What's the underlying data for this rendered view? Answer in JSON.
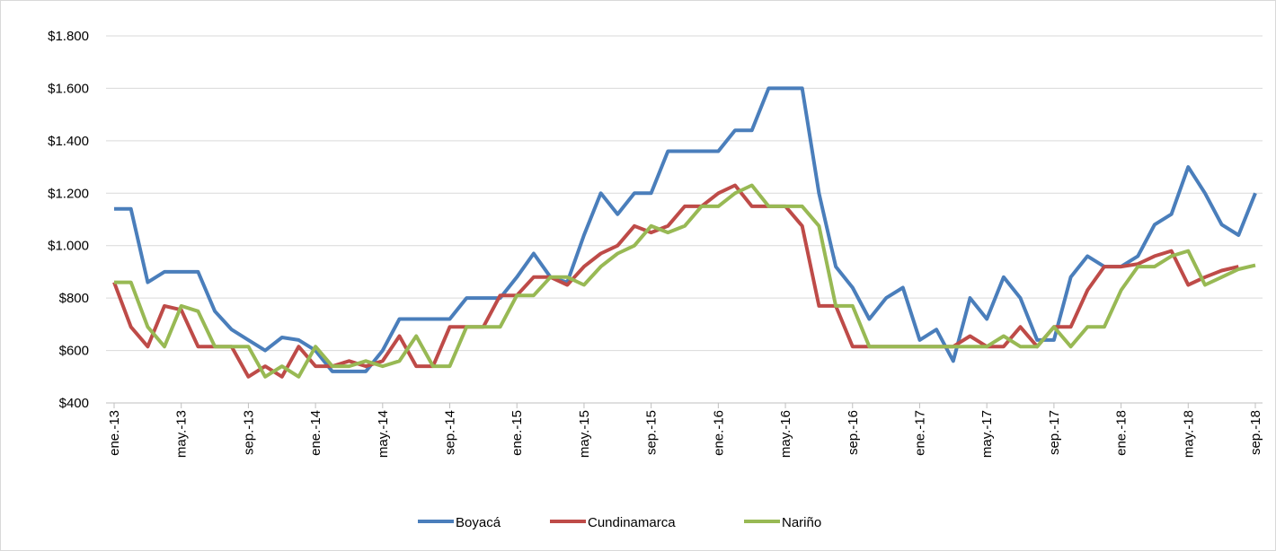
{
  "chart_data": {
    "type": "line",
    "categories": [
      "ene.-13",
      null,
      null,
      null,
      "may.-13",
      null,
      null,
      null,
      "sep.-13",
      null,
      null,
      null,
      "ene.-14",
      null,
      null,
      null,
      "may.-14",
      null,
      null,
      null,
      "sep.-14",
      null,
      null,
      null,
      "ene.-15",
      null,
      null,
      null,
      "may.-15",
      null,
      null,
      null,
      "sep.-15",
      null,
      null,
      null,
      "ene.-16",
      null,
      null,
      null,
      "may.-16",
      null,
      null,
      null,
      "sep.-16",
      null,
      null,
      null,
      "ene.-17",
      null,
      null,
      null,
      "may.-17",
      null,
      null,
      null,
      "sep.-17",
      null,
      null,
      null,
      "ene.-18",
      null,
      null,
      null,
      "may.-18",
      null,
      null,
      null,
      "sep.-18"
    ],
    "series": [
      {
        "name": "Boyacá",
        "color": "#4a7ebb",
        "values": [
          1140,
          1140,
          860,
          900,
          900,
          900,
          750,
          680,
          640,
          600,
          650,
          640,
          600,
          520,
          520,
          520,
          600,
          720,
          720,
          720,
          720,
          800,
          800,
          800,
          880,
          970,
          880,
          860,
          1040,
          1200,
          1120,
          1200,
          1200,
          1360,
          1360,
          1360,
          1360,
          1440,
          1440,
          1600,
          1600,
          1600,
          1200,
          920,
          840,
          720,
          800,
          840,
          640,
          680,
          560,
          800,
          720,
          880,
          800,
          640,
          640,
          880,
          960,
          920,
          920,
          960,
          1080,
          1120,
          1300,
          1200,
          1080,
          1040,
          1200
        ]
      },
      {
        "name": "Cundinamarca",
        "color": "#be4b48",
        "values": [
          860,
          690,
          615,
          770,
          755,
          615,
          615,
          615,
          500,
          540,
          500,
          615,
          540,
          540,
          560,
          540,
          560,
          655,
          540,
          540,
          690,
          690,
          690,
          810,
          810,
          880,
          880,
          850,
          920,
          970,
          1000,
          1075,
          1050,
          1075,
          1150,
          1150,
          1200,
          1230,
          1150,
          1150,
          1150,
          1075,
          770,
          770,
          615,
          615,
          615,
          615,
          615,
          615,
          615,
          655,
          615,
          615,
          690,
          615,
          690,
          690,
          830,
          920,
          920,
          930,
          960,
          980,
          850,
          880,
          905,
          920,
          null
        ]
      },
      {
        "name": "Nariño",
        "color": "#98b954",
        "values": [
          860,
          860,
          690,
          615,
          770,
          750,
          615,
          615,
          615,
          500,
          540,
          500,
          615,
          540,
          540,
          560,
          540,
          560,
          655,
          540,
          540,
          690,
          690,
          690,
          810,
          810,
          880,
          880,
          850,
          920,
          970,
          1000,
          1075,
          1050,
          1075,
          1150,
          1150,
          1200,
          1230,
          1150,
          1150,
          1150,
          1075,
          770,
          770,
          615,
          615,
          615,
          615,
          615,
          615,
          615,
          615,
          655,
          615,
          615,
          690,
          615,
          690,
          690,
          830,
          920,
          920,
          960,
          980,
          850,
          880,
          910,
          925
        ]
      }
    ],
    "ylim": [
      400,
      1800
    ],
    "yticks": [
      {
        "value": 400,
        "label": "$400"
      },
      {
        "value": 600,
        "label": "$600"
      },
      {
        "value": 800,
        "label": "$800"
      },
      {
        "value": 1000,
        "label": "$1.000"
      },
      {
        "value": 1200,
        "label": "$1.200"
      },
      {
        "value": 1400,
        "label": "$1.400"
      },
      {
        "value": 1600,
        "label": "$1.600"
      },
      {
        "value": 1800,
        "label": "$1.800"
      }
    ],
    "grid": true,
    "legend": "bottom"
  }
}
